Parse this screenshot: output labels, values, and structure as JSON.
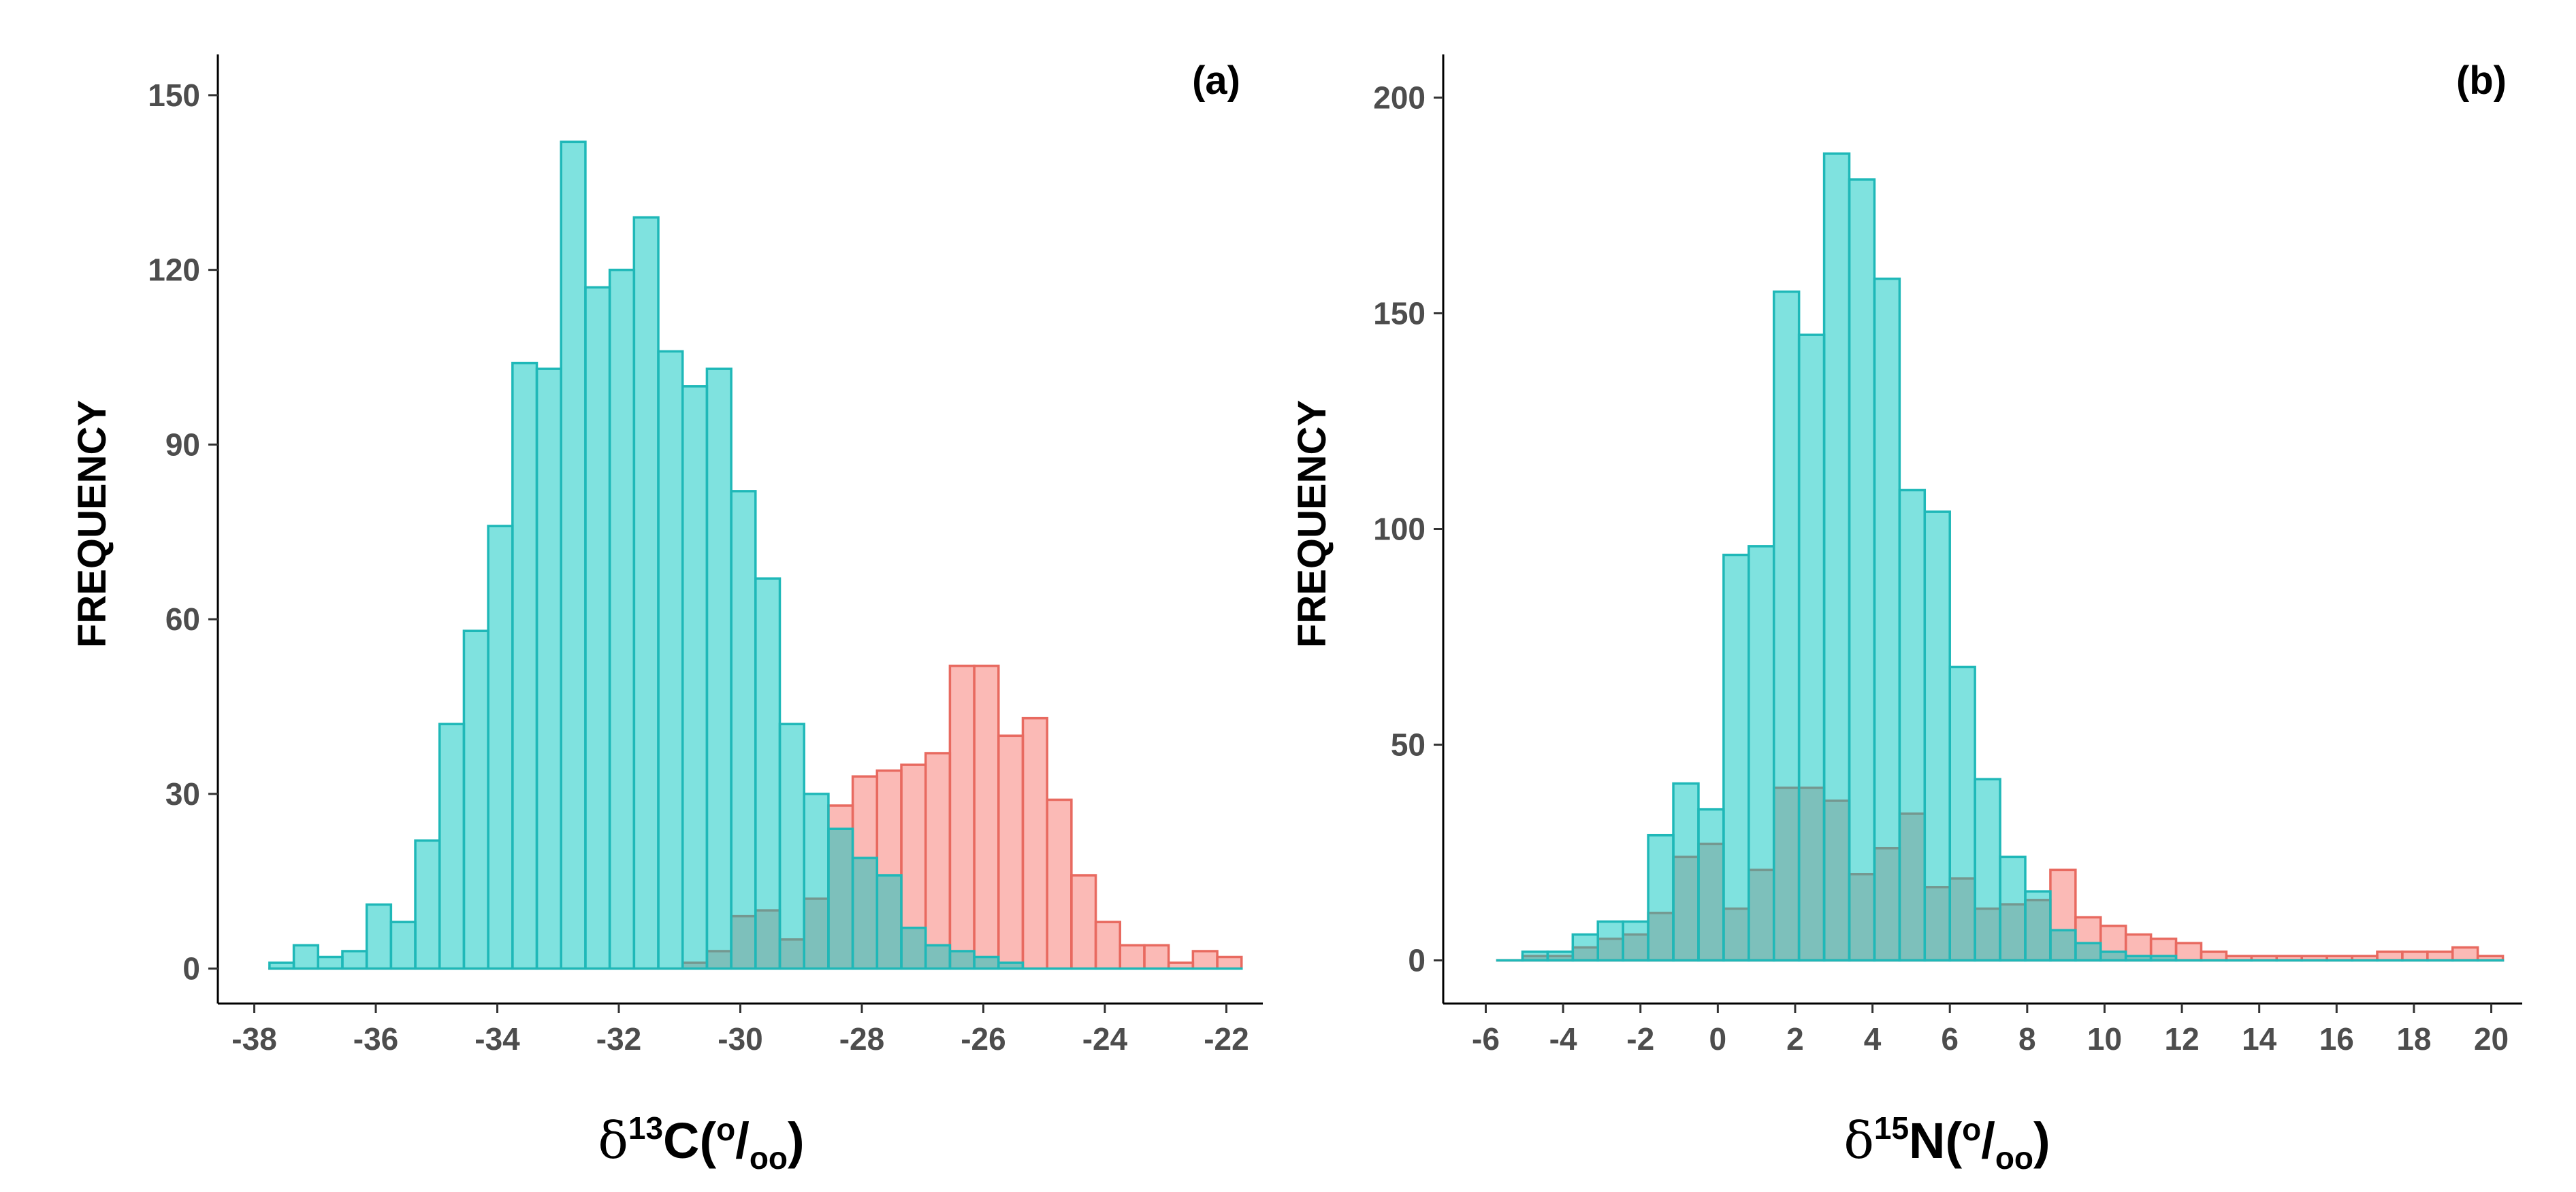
{
  "chart_data": [
    {
      "type": "histogram",
      "panel_label": "(a)",
      "xlabel": "δ13C(o/oo)",
      "xlabel_parts": {
        "delta": "δ",
        "sup": "13",
        "element": "C",
        "open": "(",
        "per_sup": "o",
        "slash": "/",
        "per_sub": "oo",
        "close": ")"
      },
      "ylabel": "FREQUENCY",
      "xlim": [
        -38.6,
        -21.4
      ],
      "ylim": [
        -6,
        157
      ],
      "xticks": [
        -38,
        -36,
        -34,
        -32,
        -30,
        -28,
        -26,
        -24,
        -22
      ],
      "xtick_labels": [
        "-38",
        "-36",
        "-34",
        "-32",
        "-30",
        "-28",
        "-26",
        "-24",
        "-22"
      ],
      "yticks": [
        0,
        30,
        60,
        90,
        120,
        150
      ],
      "ytick_labels": [
        "0",
        "30",
        "60",
        "90",
        "120",
        "150"
      ],
      "bin_start": -37.75,
      "bin_width": 0.4,
      "series": [
        {
          "name": "teal",
          "color": "#00c5c0",
          "values": [
            1,
            4,
            2,
            3,
            11,
            8,
            22,
            42,
            58,
            76,
            104,
            103,
            142,
            117,
            120,
            129,
            106,
            100,
            103,
            82,
            67,
            42,
            30,
            24,
            19,
            16,
            7,
            4,
            3,
            2,
            1,
            0,
            0,
            0,
            0,
            0,
            0,
            0,
            0,
            0
          ]
        },
        {
          "name": "red",
          "color": "#f8766d",
          "values": [
            0,
            0,
            0,
            0,
            0,
            0,
            0,
            0,
            0,
            0,
            0,
            0,
            0,
            0,
            0,
            0,
            0,
            1,
            3,
            9,
            10,
            5,
            12,
            28,
            33,
            34,
            35,
            37,
            52,
            52,
            40,
            43,
            29,
            16,
            8,
            4,
            4,
            1,
            3,
            2
          ]
        }
      ]
    },
    {
      "type": "histogram",
      "panel_label": "(b)",
      "xlabel": "δ15N(o/oo)",
      "xlabel_parts": {
        "delta": "δ",
        "sup": "15",
        "element": "N",
        "open": "(",
        "per_sup": "o",
        "slash": "/",
        "per_sub": "oo",
        "close": ")"
      },
      "ylabel": "FREQUENCY",
      "xlim": [
        -7.1,
        20.8
      ],
      "ylim": [
        -10,
        210
      ],
      "xticks": [
        -6,
        -4,
        -2,
        0,
        2,
        4,
        6,
        8,
        10,
        12,
        14,
        16,
        18,
        20
      ],
      "xtick_labels": [
        "-6",
        "-4",
        "-2",
        "0",
        "2",
        "4",
        "6",
        "8",
        "10",
        "12",
        "14",
        "16",
        "18",
        "20"
      ],
      "yticks": [
        0,
        50,
        100,
        150,
        200
      ],
      "ytick_labels": [
        "0",
        "50",
        "100",
        "150",
        "200"
      ],
      "bin_start": -5.7,
      "bin_width": 0.65,
      "series": [
        {
          "name": "teal",
          "color": "#00c5c0",
          "values": [
            0,
            2,
            2,
            6,
            9,
            9,
            29,
            41,
            35,
            94,
            96,
            155,
            145,
            187,
            181,
            158,
            109,
            104,
            68,
            42,
            24,
            16,
            7,
            4,
            2,
            1,
            1,
            0,
            0,
            0,
            0,
            0,
            0,
            0,
            0,
            0,
            0,
            0,
            0,
            0
          ]
        },
        {
          "name": "red",
          "color": "#f8766d",
          "values": [
            0,
            1,
            1,
            3,
            5,
            6,
            11,
            24,
            27,
            12,
            21,
            40,
            40,
            37,
            20,
            26,
            34,
            17,
            19,
            12,
            13,
            14,
            21,
            10,
            8,
            6,
            5,
            4,
            2,
            1,
            1,
            1,
            1,
            1,
            1,
            2,
            2,
            2,
            3,
            1
          ]
        }
      ]
    }
  ]
}
